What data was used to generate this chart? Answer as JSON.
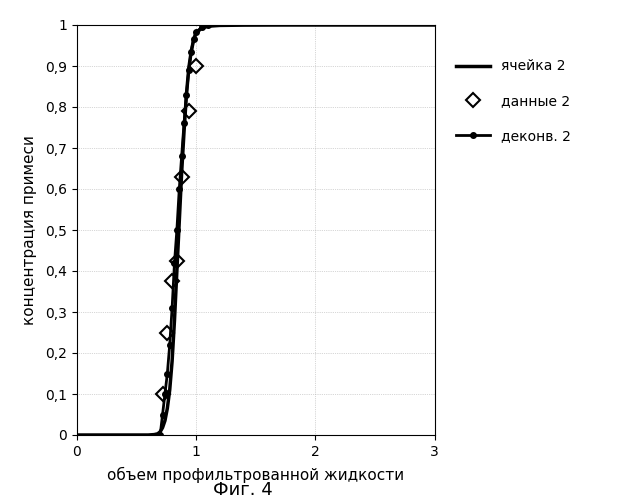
{
  "title": "",
  "xlabel": "объем профильтрованной жидкости",
  "ylabel": "концентрация примеси",
  "fig_caption": "Фиг. 4",
  "xlim": [
    0,
    3
  ],
  "ylim": [
    0,
    1
  ],
  "xticks": [
    0,
    1,
    2,
    3
  ],
  "yticks": [
    0,
    0.1,
    0.2,
    0.3,
    0.4,
    0.5,
    0.6,
    0.7,
    0.8,
    0.9,
    1
  ],
  "ytick_labels": [
    "0",
    "0,1",
    "0,2",
    "0,3",
    "0,4",
    "0,5",
    "0,6",
    "0,7",
    "0,8",
    "0,9",
    "1"
  ],
  "background_color": "#ffffff",
  "grid_color": "#b0b0b0",
  "legend_labels": [
    "ячейка 2",
    "данные 2",
    "деконв. 2"
  ],
  "curve1_color": "#000000",
  "curve2_color": "#000000",
  "curve3_color": "#000000",
  "curve1_x": [
    0.0,
    0.6,
    0.65,
    0.68,
    0.7,
    0.72,
    0.74,
    0.76,
    0.78,
    0.8,
    0.82,
    0.84,
    0.86,
    0.88,
    0.9,
    0.92,
    0.94,
    0.96,
    0.98,
    1.0,
    1.05,
    1.1,
    1.2,
    1.4,
    1.6,
    1.8,
    2.0,
    2.5,
    3.0
  ],
  "curve1_y": [
    0.0,
    0.0,
    0.001,
    0.003,
    0.008,
    0.018,
    0.035,
    0.065,
    0.11,
    0.18,
    0.28,
    0.4,
    0.52,
    0.64,
    0.74,
    0.83,
    0.895,
    0.935,
    0.963,
    0.98,
    0.993,
    0.997,
    0.999,
    0.9997,
    0.9999,
    1.0,
    1.0,
    1.0,
    1.0
  ],
  "data2_x": [
    0.72,
    0.76,
    0.8,
    0.84,
    0.88,
    0.94,
    1.0
  ],
  "data2_y": [
    0.1,
    0.25,
    0.375,
    0.425,
    0.63,
    0.79,
    0.9
  ],
  "deconv2_x": [
    0.7,
    0.72,
    0.74,
    0.76,
    0.78,
    0.8,
    0.82,
    0.84,
    0.86,
    0.88,
    0.9,
    0.92,
    0.94,
    0.96,
    0.98,
    1.0,
    1.05,
    1.1
  ],
  "deconv2_y": [
    0.0,
    0.05,
    0.1,
    0.15,
    0.22,
    0.31,
    0.42,
    0.5,
    0.6,
    0.68,
    0.76,
    0.83,
    0.89,
    0.935,
    0.965,
    0.982,
    0.995,
    0.999
  ]
}
